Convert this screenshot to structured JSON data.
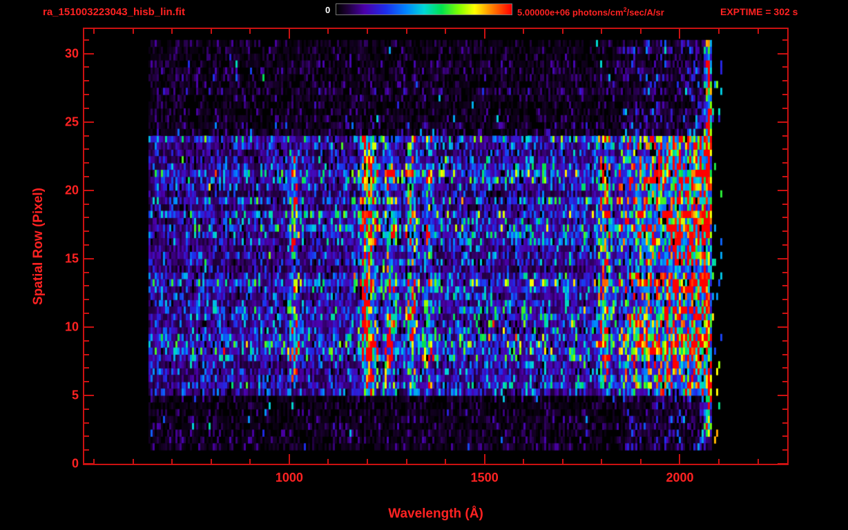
{
  "colors": {
    "accent_red": "#ff2222",
    "axis_red": "#cc1111",
    "colorbar_zero": "#ffffff",
    "background": "#000000"
  },
  "chart_data": {
    "type": "heatmap",
    "title": "ra_151003223043_hisb_lin.fit",
    "xlabel": "Wavelength (Å)",
    "ylabel": "Spatial Row (Pixel)",
    "exptime": "EXPTIME = 302 s",
    "xlim": [
      475,
      2275
    ],
    "ylim": [
      0,
      31.8
    ],
    "xticks": [
      1000,
      1500,
      2000
    ],
    "yticks": [
      0,
      5,
      10,
      15,
      20,
      25,
      30
    ],
    "x_minor_step": 100,
    "y_minor_step": 1,
    "colorbar": {
      "min_label": "0",
      "max_label_prefix": "5.00000e+06 photons/cm",
      "max_label_sup": "2",
      "max_label_suffix": "/sec/A/sr",
      "min_value": 0,
      "max_value": 5000000
    },
    "data_extent": {
      "wavelength_min": 640,
      "wavelength_max": 2105,
      "row_min": 1,
      "row_max": 30
    },
    "band": {
      "row_min": 5,
      "row_max": 23,
      "base": 0.16,
      "base_slope": 0.05
    },
    "outer_base": 0.055,
    "emission_lines": [
      {
        "wavelength": 1010,
        "sigma": 7,
        "amp": 0.34,
        "row_min": 6,
        "row_max": 22
      },
      {
        "wavelength": 1200,
        "sigma": 11,
        "amp": 0.72,
        "row_min": 5,
        "row_max": 23
      },
      {
        "wavelength": 1255,
        "sigma": 8,
        "amp": 0.36,
        "row_min": 5,
        "row_max": 23
      },
      {
        "wavelength": 1310,
        "sigma": 8,
        "amp": 0.3,
        "row_min": 5,
        "row_max": 23
      },
      {
        "wavelength": 1355,
        "sigma": 7,
        "amp": 0.18,
        "row_min": 5,
        "row_max": 23
      },
      {
        "wavelength": 1805,
        "sigma": 9,
        "amp": 0.42,
        "row_min": 6,
        "row_max": 23
      },
      {
        "wavelength": 2070,
        "sigma": 5,
        "amp": 0.8,
        "row_min": 2,
        "row_max": 30
      }
    ],
    "continuum": {
      "wavelength_min": 1840,
      "wavelength_max": 2062,
      "amp_start": 0.12,
      "amp_end": 0.45,
      "row_min": 5,
      "row_max": 23,
      "upper_row_min": 13,
      "upper_boost": 0.18
    },
    "sparse_region": {
      "wavelength_min": 2080,
      "wavelength_max": 2105,
      "probability": 0.08
    },
    "colormap_stops": [
      [
        0.0,
        0,
        0,
        0
      ],
      [
        0.06,
        30,
        0,
        55
      ],
      [
        0.16,
        75,
        0,
        170
      ],
      [
        0.28,
        30,
        45,
        235
      ],
      [
        0.4,
        0,
        135,
        255
      ],
      [
        0.5,
        0,
        215,
        215
      ],
      [
        0.6,
        0,
        225,
        80
      ],
      [
        0.7,
        130,
        255,
        0
      ],
      [
        0.79,
        255,
        255,
        0
      ],
      [
        0.88,
        255,
        140,
        0
      ],
      [
        1.0,
        255,
        0,
        0
      ]
    ]
  }
}
